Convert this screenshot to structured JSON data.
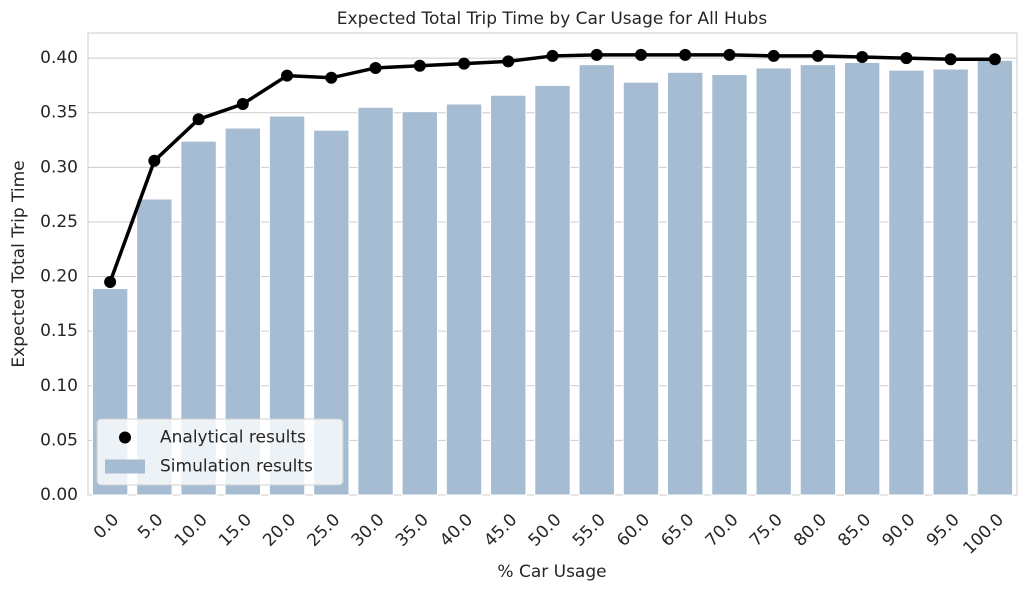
{
  "chart_data": {
    "type": "bar",
    "title": "Expected Total Trip Time by Car Usage for All Hubs",
    "x_label": "% Car Usage",
    "y_label": "Expected Total Trip Time",
    "categories": [
      "0.0",
      "5.0",
      "10.0",
      "15.0",
      "20.0",
      "25.0",
      "30.0",
      "35.0",
      "40.0",
      "45.0",
      "50.0",
      "55.0",
      "60.0",
      "65.0",
      "70.0",
      "75.0",
      "80.0",
      "85.0",
      "90.0",
      "95.0",
      "100.0"
    ],
    "series": [
      {
        "name": "Analytical results",
        "type": "line",
        "color": "#000000",
        "values": [
          0.195,
          0.306,
          0.344,
          0.358,
          0.384,
          0.382,
          0.391,
          0.393,
          0.395,
          0.397,
          0.402,
          0.403,
          0.403,
          0.403,
          0.403,
          0.402,
          0.402,
          0.401,
          0.4,
          0.399,
          0.399
        ]
      },
      {
        "name": "Simulation results",
        "type": "bar",
        "color": "#a5bcd3",
        "values": [
          0.189,
          0.271,
          0.324,
          0.336,
          0.347,
          0.334,
          0.355,
          0.351,
          0.358,
          0.366,
          0.375,
          0.394,
          0.378,
          0.387,
          0.385,
          0.391,
          0.394,
          0.396,
          0.389,
          0.39,
          0.398
        ]
      }
    ],
    "ylim": [
      0,
      0.423
    ],
    "yticks": [
      {
        "value": 0,
        "label": "0.00"
      },
      {
        "value": 0.05,
        "label": "0.05"
      },
      {
        "value": 0.1,
        "label": "0.10"
      },
      {
        "value": 0.15,
        "label": "0.15"
      },
      {
        "value": 0.2,
        "label": "0.20"
      },
      {
        "value": 0.25,
        "label": "0.25"
      },
      {
        "value": 0.3,
        "label": "0.30"
      },
      {
        "value": 0.35,
        "label": "0.35"
      },
      {
        "value": 0.4,
        "label": "0.40"
      }
    ],
    "grid": true,
    "legend": "lower left"
  }
}
